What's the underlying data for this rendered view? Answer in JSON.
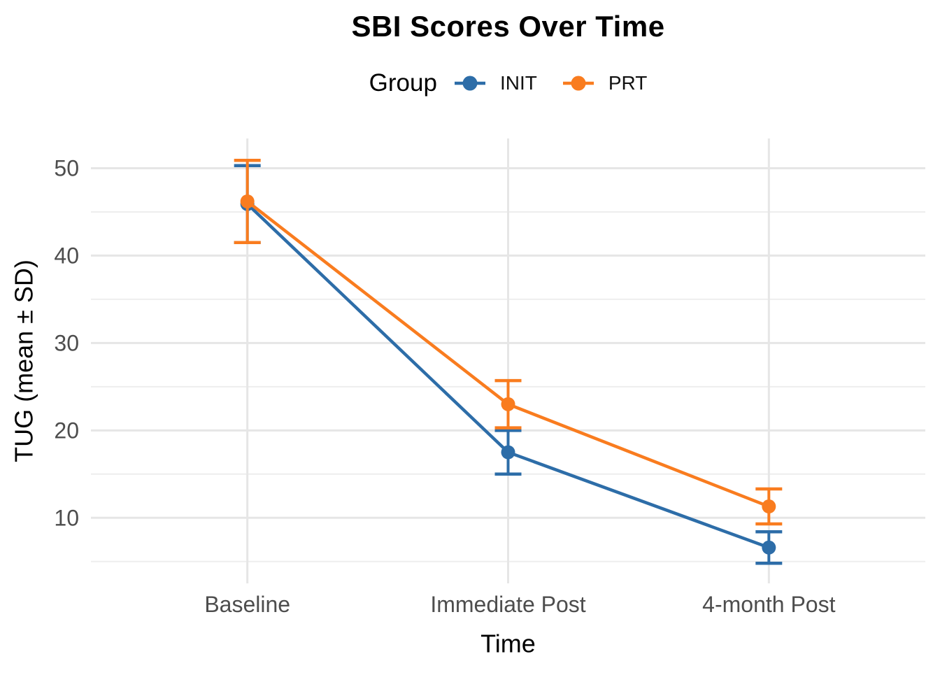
{
  "chart_data": {
    "type": "line",
    "title": "SBI Scores Over Time",
    "legend_title": "Group",
    "legend_position": "top",
    "xlabel": "Time",
    "ylabel": "TUG (mean ± SD)",
    "categories": [
      "Baseline",
      "Immediate Post",
      "4-month Post"
    ],
    "y_ticks": [
      10,
      20,
      30,
      40,
      50
    ],
    "y_minor_ticks": [
      5,
      15,
      25,
      35,
      45
    ],
    "ylim": [
      2.5,
      53.4
    ],
    "grid": true,
    "error_bars": "mean ± SD",
    "series": [
      {
        "name": "INIT",
        "color": "#2d6da8",
        "values": [
          45.9,
          17.5,
          6.6
        ],
        "sd": [
          4.4,
          2.5,
          1.8
        ]
      },
      {
        "name": "PRT",
        "color": "#f97c1f",
        "values": [
          46.2,
          23.0,
          11.3
        ],
        "sd": [
          4.7,
          2.7,
          2.0
        ]
      }
    ],
    "colors": {
      "grid_major": "#e6e6e6",
      "grid_minor": "#eeeeee",
      "tick_label": "#4d4d4d",
      "axis_title": "#000000",
      "title": "#000000",
      "background": "#ffffff"
    }
  }
}
